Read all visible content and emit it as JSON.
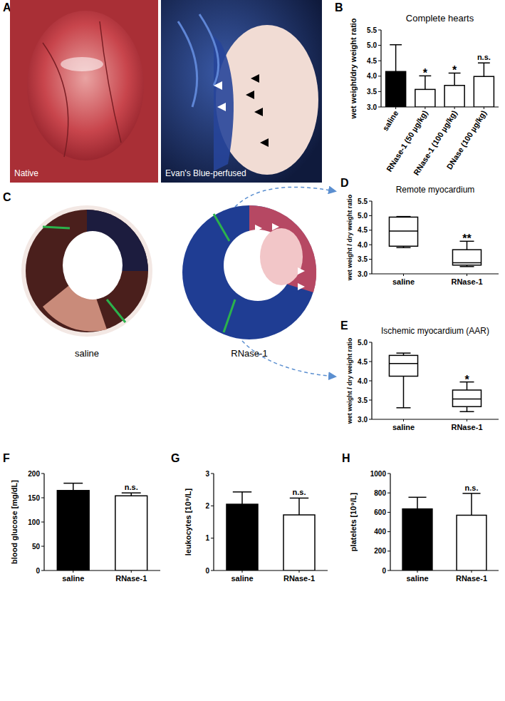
{
  "panel_labels": [
    "A",
    "B",
    "C",
    "D",
    "E",
    "F",
    "G",
    "H"
  ],
  "images": {
    "A": [
      "Native",
      "Evan's Blue-perfused"
    ],
    "C": [
      "saline",
      "RNase-1"
    ]
  },
  "chart_data": [
    {
      "type": "bar",
      "title": "Complete hearts",
      "y_label": "wet weight/dry weight ratio",
      "categories": [
        "saline",
        "RNase-1 (50 µg/kg)",
        "RNase-1 (100 µg/kg)",
        "DNase (100 µg/kg)"
      ],
      "values": [
        4.15,
        3.57,
        3.7,
        3.99
      ],
      "errors": [
        0.87,
        0.44,
        0.4,
        0.44
      ],
      "colors": [
        "#000000",
        "#ffffff",
        "#ffffff",
        "#ffffff"
      ],
      "ylim": [
        3.0,
        5.5
      ],
      "yticks": [
        {
          "value": 3,
          "label": "3.0"
        },
        3.5,
        {
          "value": 4,
          "label": "4.0"
        },
        4.5,
        {
          "value": 5,
          "label": "5.0"
        },
        5.5
      ],
      "annotations": [
        {
          "category": "RNase-1 (50 µg/kg)",
          "text": "*"
        },
        {
          "category": "RNase-1 (100 µg/kg)",
          "text": "*"
        },
        {
          "category": "DNase (100 µg/kg)",
          "text": "n.s."
        }
      ]
    },
    {
      "type": "box",
      "title": "Remote myocardium",
      "y_label": "wet weight / dry weight ratio",
      "categories": [
        "saline",
        "RNase-1"
      ],
      "boxes": [
        {
          "min": 3.9,
          "q1": 3.95,
          "median": 4.47,
          "q3": 4.95,
          "max": 4.97
        },
        {
          "min": 3.25,
          "q1": 3.3,
          "median": 3.38,
          "q3": 3.83,
          "max": 4.12
        }
      ],
      "color": "#ffffff",
      "ylim": [
        3.0,
        5.5
      ],
      "yticks": [
        {
          "value": 3,
          "label": "3.0"
        },
        3.5,
        {
          "value": 4,
          "label": "4.0"
        },
        4.5,
        {
          "value": 5,
          "label": "5.0"
        },
        5.5
      ],
      "annotations": [
        {
          "category": "RNase-1",
          "text": "**"
        }
      ]
    },
    {
      "type": "box",
      "title": "Ischemic myocardium (AAR)",
      "y_label": "wet weight / dry weight ratio",
      "categories": [
        "saline",
        "RNase-1"
      ],
      "boxes": [
        {
          "min": 3.3,
          "q1": 4.12,
          "median": 4.45,
          "q3": 4.66,
          "max": 4.72
        },
        {
          "min": 3.2,
          "q1": 3.33,
          "median": 3.53,
          "q3": 3.76,
          "max": 3.97
        }
      ],
      "color": "#ffffff",
      "ylim": [
        3.0,
        5.0
      ],
      "yticks": [
        {
          "value": 3,
          "label": "3.0"
        },
        3.5,
        {
          "value": 4,
          "label": "4.0"
        },
        4.5,
        {
          "value": 5,
          "label": "5.0"
        }
      ],
      "annotations": [
        {
          "category": "RNase-1",
          "text": "*"
        }
      ]
    },
    {
      "type": "bar",
      "y_label": "blood glucose [mg/dL]",
      "categories": [
        "saline",
        "RNase-1"
      ],
      "values": [
        165,
        154
      ],
      "errors": [
        15,
        6
      ],
      "colors": [
        "#000000",
        "#ffffff"
      ],
      "ylim": [
        0,
        200
      ],
      "yticks": [
        0,
        50,
        100,
        150,
        200
      ],
      "annotations": [
        {
          "category": "RNase-1",
          "text": "n.s."
        }
      ]
    },
    {
      "type": "bar",
      "y_label": "leukocytes [10⁹/L]",
      "categories": [
        "saline",
        "RNase-1"
      ],
      "values": [
        2.05,
        1.72
      ],
      "errors": [
        0.38,
        0.52
      ],
      "colors": [
        "#000000",
        "#ffffff"
      ],
      "ylim": [
        0,
        3
      ],
      "yticks": [
        0,
        1,
        2,
        3
      ],
      "annotations": [
        {
          "category": "RNase-1",
          "text": "n.s."
        }
      ]
    },
    {
      "type": "bar",
      "y_label": "platelets [10⁹/L]",
      "categories": [
        "saline",
        "RNase-1"
      ],
      "values": [
        635,
        570
      ],
      "errors": [
        120,
        225
      ],
      "colors": [
        "#000000",
        "#ffffff"
      ],
      "ylim": [
        0,
        1000
      ],
      "yticks": [
        0,
        200,
        400,
        600,
        800,
        1000
      ],
      "annotations": [
        {
          "category": "RNase-1",
          "text": "n.s."
        }
      ]
    }
  ]
}
